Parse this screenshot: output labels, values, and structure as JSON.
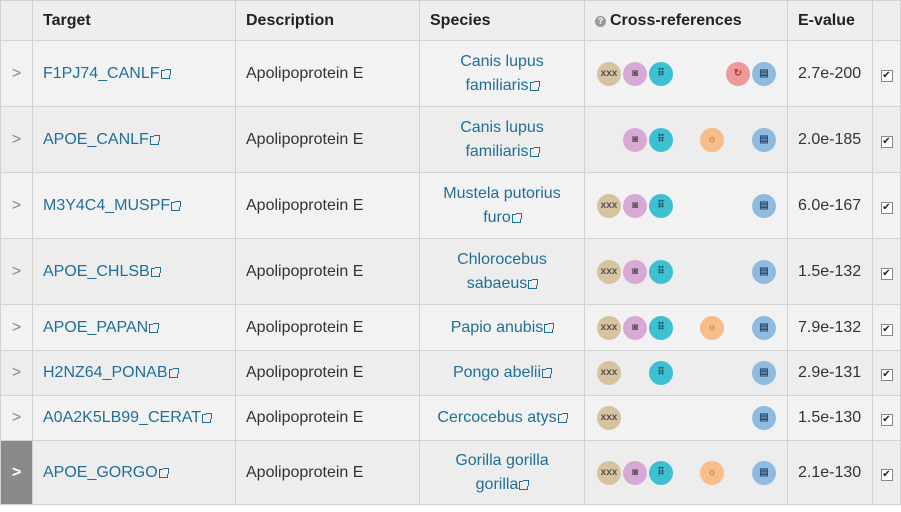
{
  "headers": {
    "target": "Target",
    "description": "Description",
    "species": "Species",
    "xrefs": "Cross-references",
    "evalue": "E-value",
    "help": "?"
  },
  "expander_glyph": ">",
  "check_glyph": "✔",
  "rows": [
    {
      "target": "F1PJ74_CANLF",
      "description": "Apolipoprotein E",
      "species_l1": "Canis lupus",
      "species_l2": "familiaris",
      "evalue": "2.7e-200",
      "icons": [
        "dna-icon",
        "structure-icon",
        "family-icon",
        "cycle-icon",
        "document-icon"
      ]
    },
    {
      "target": "APOE_CANLF",
      "description": "Apolipoprotein E",
      "species_l1": "Canis lupus",
      "species_l2": "familiaris",
      "evalue": "2.0e-185",
      "icons": [
        "structure-icon",
        "family-icon",
        "sun-icon",
        "document-icon"
      ]
    },
    {
      "target": "M3Y4C4_MUSPF",
      "description": "Apolipoprotein E",
      "species_l1": "Mustela putorius",
      "species_l2": "furo",
      "evalue": "6.0e-167",
      "icons": [
        "dna-icon",
        "structure-icon",
        "family-icon",
        "document-icon"
      ]
    },
    {
      "target": "APOE_CHLSB",
      "description": "Apolipoprotein E",
      "species_l1": "Chlorocebus",
      "species_l2": "sabaeus",
      "evalue": "1.5e-132",
      "icons": [
        "dna-icon",
        "structure-icon",
        "family-icon",
        "document-icon"
      ]
    },
    {
      "target": "APOE_PAPAN",
      "description": "Apolipoprotein E",
      "species_l1": "Papio anubis",
      "species_l2": "",
      "evalue": "7.9e-132",
      "icons": [
        "dna-icon",
        "structure-icon",
        "family-icon",
        "sun-icon",
        "document-icon"
      ]
    },
    {
      "target": "H2NZ64_PONAB",
      "description": "Apolipoprotein E",
      "species_l1": "Pongo abelii",
      "species_l2": "",
      "evalue": "2.9e-131",
      "icons": [
        "dna-icon",
        "family-icon",
        "document-icon"
      ]
    },
    {
      "target": "A0A2K5LB99_CERAT",
      "description": "Apolipoprotein E",
      "species_l1": "Cercocebus atys",
      "species_l2": "",
      "evalue": "1.5e-130",
      "icons": [
        "dna-icon",
        "document-icon"
      ]
    },
    {
      "target": "APOE_GORGO",
      "description": "Apolipoprotein E",
      "species_l1": "Gorilla gorilla",
      "species_l2": "gorilla",
      "evalue": "2.1e-130",
      "icons": [
        "dna-icon",
        "structure-icon",
        "family-icon",
        "sun-icon",
        "document-icon"
      ]
    }
  ]
}
